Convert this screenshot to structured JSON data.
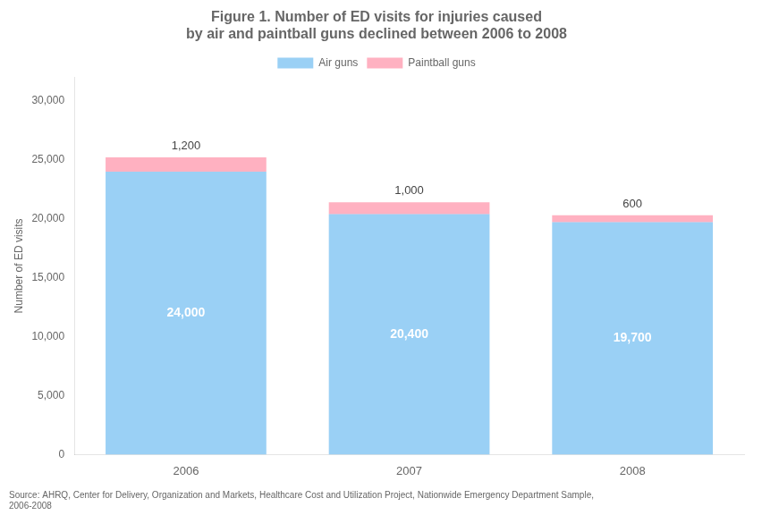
{
  "chart_data": {
    "type": "bar",
    "title": "Figure 1. Number of ED visits for injuries caused\nby air and paintball guns declined between 2006 to 2008",
    "categories": [
      "2006",
      "2007",
      "2008"
    ],
    "series": [
      {
        "name": "Air guns",
        "values": [
          24000,
          20400,
          19700
        ],
        "value_labels": [
          "24,000",
          "20,400",
          "19,700"
        ]
      },
      {
        "name": "Paintball guns",
        "values": [
          1200,
          1000,
          600
        ],
        "value_labels": [
          "1,200",
          "1,000",
          "600"
        ]
      }
    ],
    "stacked": true,
    "data_labels": true,
    "ylabel": "Number of ED visits",
    "ylim": [
      0,
      32000
    ],
    "yticks": [
      0,
      {
        "value": 5000,
        "label": "5,000"
      },
      {
        "value": 10000,
        "label": "10,000"
      },
      {
        "value": 15000,
        "label": "15,000"
      },
      {
        "value": 20000,
        "label": "20,000"
      },
      {
        "value": 25000,
        "label": "25,000"
      },
      {
        "value": 30000,
        "label": "30,000"
      }
    ],
    "grid": false,
    "legend": "top",
    "annotations": [
      "Source: AHRQ, Center for Delivery, Organization and Markets, Healthcare Cost and Utilization Project, Nationwide Emergency Department Sample,\n2006-2008"
    ]
  }
}
